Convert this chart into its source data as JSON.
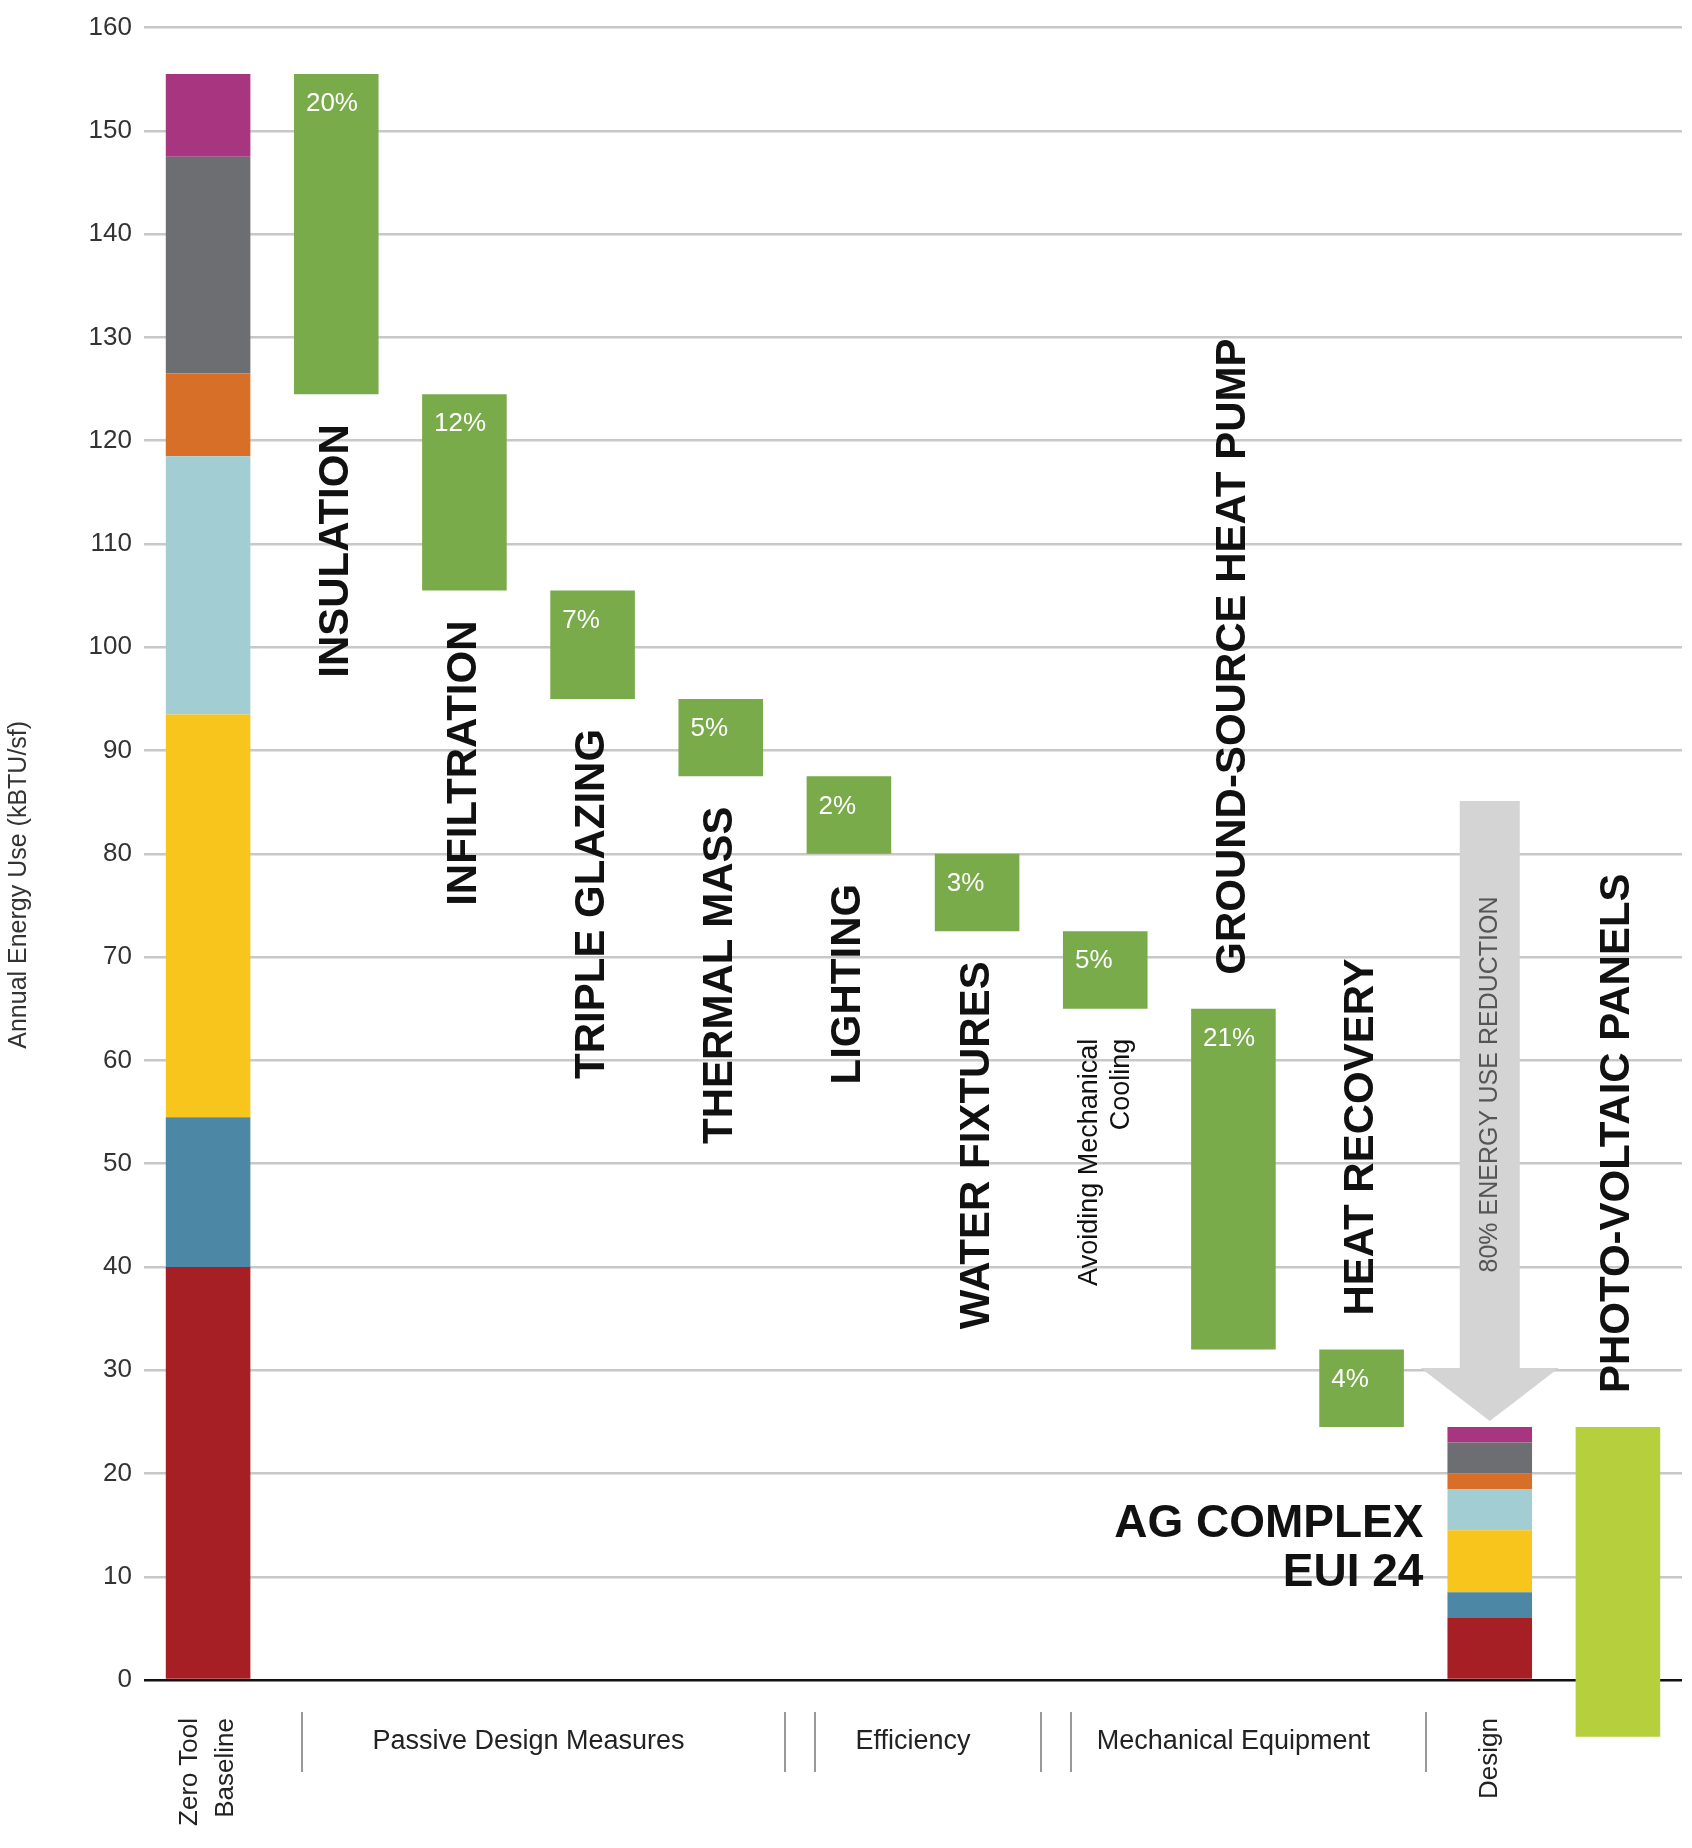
{
  "chart_data": {
    "type": "bar",
    "stacked": true,
    "ylabel": "Annual Energy Use (kBTU/sf)",
    "categories": [
      "Zero Tool Baseline",
      "INSULATION",
      "INFILTRATION",
      "TRIPLE GLAZING",
      "THERMAL MASS",
      "LIGHTING",
      "WATER FIXTURES",
      "Avoiding Mechanical Cooling",
      "GROUND-SOURCE HEAT PUMP",
      "HEAT RECOVERY",
      "Design",
      "PHOTO-VOLTAIC PANELS"
    ],
    "series": [
      {
        "color": "#a51f24",
        "values": [
          40,
          null,
          null,
          null,
          null,
          null,
          null,
          null,
          null,
          null,
          6,
          null
        ]
      },
      {
        "color": "#4d87a6",
        "values": [
          14.5,
          null,
          null,
          null,
          null,
          null,
          null,
          null,
          null,
          null,
          2.5,
          null
        ]
      },
      {
        "color": "#f7c51c",
        "values": [
          39,
          null,
          null,
          null,
          null,
          null,
          null,
          null,
          null,
          null,
          6,
          null
        ]
      },
      {
        "color": "#a2ced3",
        "values": [
          25,
          null,
          null,
          null,
          null,
          null,
          null,
          null,
          null,
          null,
          4,
          null
        ]
      },
      {
        "color": "#d86f29",
        "values": [
          8,
          null,
          null,
          null,
          null,
          null,
          null,
          null,
          null,
          null,
          1.5,
          null
        ]
      },
      {
        "color": "#6d6e71",
        "values": [
          21,
          null,
          null,
          null,
          null,
          null,
          null,
          null,
          null,
          null,
          3,
          null
        ]
      },
      {
        "color": "#a8357f",
        "values": [
          8,
          null,
          null,
          null,
          null,
          null,
          null,
          null,
          null,
          null,
          1.5,
          null
        ]
      },
      {
        "color": "#79ab4b",
        "values": [
          null,
          31,
          19,
          10.5,
          7.5,
          7.5,
          7.5,
          7.5,
          33,
          7.5,
          null,
          null
        ],
        "base": [
          null,
          124.5,
          105.5,
          95,
          87.5,
          80,
          72.5,
          65,
          32,
          24.5,
          null,
          null
        ]
      },
      {
        "color": "#b5cf3d",
        "values": [
          null,
          null,
          null,
          null,
          null,
          null,
          null,
          null,
          null,
          null,
          null,
          30
        ],
        "base": [
          null,
          null,
          null,
          null,
          null,
          null,
          null,
          null,
          null,
          null,
          null,
          -5.5
        ]
      }
    ],
    "ylim": [
      -6,
      160
    ],
    "yticks": [
      0,
      10,
      20,
      30,
      40,
      50,
      60,
      70,
      80,
      90,
      100,
      110,
      120,
      130,
      140,
      150,
      160
    ],
    "grid": "y",
    "annotations": [
      "AG COMPLEX\nEUI 24",
      "80% ENERGY USE REDUCTION",
      "Passive Design Measures",
      "Efficiency",
      "Mechanical Equipment",
      {
        "text": "20%",
        "x": "INSULATION",
        "y": 155.5
      },
      {
        "text": "12%",
        "x": "INFILTRATION",
        "y": 124.5
      },
      {
        "text": "7%",
        "x": "TRIPLE GLAZING",
        "y": 105.5
      },
      {
        "text": "5%",
        "x": "THERMAL MASS",
        "y": 95
      },
      {
        "text": "2%",
        "x": "LIGHTING",
        "y": 87.5
      },
      {
        "text": "3%",
        "x": "WATER FIXTURES",
        "y": 80
      },
      {
        "text": "5%",
        "x": "Avoiding Mechanical Cooling",
        "y": 72.5
      },
      {
        "text": "21%",
        "x": "GROUND-SOURCE HEAT PUMP",
        "y": 65
      },
      {
        "text": "4%",
        "x": "HEAT RECOVERY",
        "y": 32
      }
    ]
  }
}
